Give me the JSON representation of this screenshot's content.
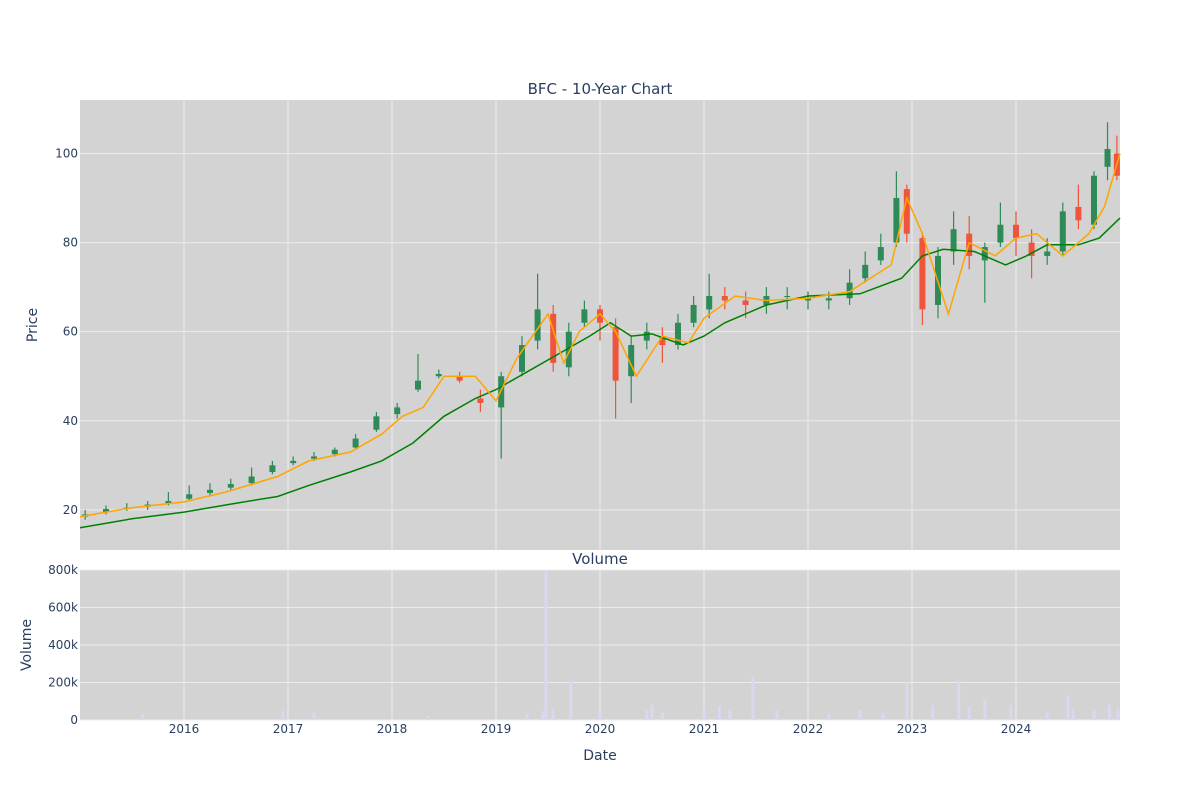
{
  "chart_data": [
    {
      "type": "candlestick",
      "title": "BFC - 10-Year Chart",
      "ylabel": "Price",
      "xlabel": "",
      "ylim": [
        11,
        112
      ],
      "yticks": [
        20,
        40,
        60,
        80,
        100
      ],
      "xrange": [
        2015.0,
        2025.0
      ],
      "grid": true,
      "legend": "none",
      "colors": {
        "background": "#d3d3d3",
        "grid": "#ececec",
        "up": "#2e8b57",
        "down": "#ef553b",
        "ma_short": "#ffa500",
        "ma_long": "#008000"
      },
      "series": [
        {
          "name": "",
          "role": "ma_long",
          "x": [
            2015.0,
            2015.5,
            2016.0,
            2016.5,
            2016.9,
            2017.2,
            2017.6,
            2017.9,
            2018.2,
            2018.5,
            2018.8,
            2019.0,
            2019.3,
            2019.6,
            2019.9,
            2020.1,
            2020.3,
            2020.5,
            2020.8,
            2021.0,
            2021.2,
            2021.6,
            2022.0,
            2022.5,
            2022.9,
            2023.1,
            2023.3,
            2023.6,
            2023.9,
            2024.1,
            2024.3,
            2024.6,
            2024.8,
            2025.0
          ],
          "y": [
            16,
            18,
            19.5,
            21.5,
            23,
            25.5,
            28.5,
            31,
            35,
            41,
            45,
            47,
            51,
            55,
            59,
            62,
            59,
            59.5,
            57,
            59,
            62,
            66,
            68,
            68.5,
            72,
            77,
            78.5,
            78,
            75,
            77,
            79.5,
            79.5,
            81,
            85.5
          ]
        },
        {
          "name": "",
          "role": "ma_short",
          "x": [
            2015.0,
            2015.5,
            2016.0,
            2016.4,
            2016.9,
            2017.2,
            2017.6,
            2017.9,
            2018.1,
            2018.3,
            2018.5,
            2018.8,
            2019.0,
            2019.2,
            2019.5,
            2019.65,
            2019.8,
            2020.0,
            2020.15,
            2020.35,
            2020.6,
            2020.85,
            2021.0,
            2021.3,
            2021.6,
            2022.0,
            2022.4,
            2022.8,
            2022.95,
            2023.1,
            2023.35,
            2023.55,
            2023.8,
            2024.0,
            2024.2,
            2024.45,
            2024.7,
            2024.85,
            2025.0
          ],
          "y": [
            18.5,
            20.5,
            21.8,
            24,
            27.5,
            31,
            33,
            37,
            41,
            43,
            50,
            50,
            44.5,
            54,
            64,
            53,
            60,
            64,
            60,
            50,
            59,
            57.5,
            63,
            68,
            67,
            67.5,
            69,
            75,
            90,
            82,
            64,
            80,
            77,
            81,
            82,
            77,
            82,
            88,
            100
          ]
        }
      ],
      "candles": {
        "x": [
          2015.05,
          2015.25,
          2015.45,
          2015.65,
          2015.85,
          2016.05,
          2016.25,
          2016.45,
          2016.65,
          2016.85,
          2017.05,
          2017.25,
          2017.45,
          2017.65,
          2017.85,
          2018.05,
          2018.25,
          2018.45,
          2018.65,
          2018.85,
          2019.05,
          2019.25,
          2019.4,
          2019.55,
          2019.7,
          2019.85,
          2020.0,
          2020.15,
          2020.3,
          2020.45,
          2020.6,
          2020.75,
          2020.9,
          2021.05,
          2021.2,
          2021.4,
          2021.6,
          2021.8,
          2022.0,
          2022.2,
          2022.4,
          2022.55,
          2022.7,
          2022.85,
          2022.95,
          2023.1,
          2023.25,
          2023.4,
          2023.55,
          2023.7,
          2023.85,
          2024.0,
          2024.15,
          2024.3,
          2024.45,
          2024.6,
          2024.75,
          2024.88,
          2024.97
        ],
        "open": [
          18.5,
          19.5,
          20.3,
          20.7,
          21.5,
          22.5,
          23.8,
          25,
          26,
          28.5,
          30.5,
          31.5,
          32.5,
          34,
          38,
          41.5,
          47,
          50,
          50,
          45,
          43,
          51,
          58,
          64,
          52,
          62,
          65,
          61,
          50,
          58,
          59,
          57,
          62,
          65,
          68,
          67,
          66,
          68,
          67,
          67,
          67.5,
          72,
          76,
          80,
          92,
          81,
          66,
          78,
          82,
          76,
          80,
          84,
          80,
          77,
          78,
          88,
          84,
          97,
          100
        ],
        "close": [
          19,
          20.2,
          20.5,
          21.2,
          22,
          23.5,
          24.5,
          25.8,
          27.5,
          30,
          31,
          32,
          33.5,
          36,
          41,
          43,
          49,
          50.5,
          49,
          44,
          50,
          57,
          65,
          53,
          60,
          65,
          62,
          49,
          57,
          60,
          57,
          62,
          66,
          68,
          67,
          66,
          68,
          68,
          67.5,
          67.5,
          71,
          75,
          79,
          90,
          82,
          65,
          77,
          83,
          77,
          79,
          84,
          81,
          77,
          78,
          87,
          85,
          95,
          101,
          95
        ],
        "high": [
          20,
          21,
          21.5,
          22,
          24,
          25.5,
          26,
          27,
          29.5,
          31,
          32,
          33,
          34,
          37,
          42,
          44,
          55,
          51.5,
          51,
          47,
          51,
          59,
          73,
          66,
          62,
          67,
          66,
          63,
          59,
          62,
          61,
          64,
          68,
          73,
          70,
          69,
          70,
          70,
          69,
          69,
          74,
          78,
          82,
          96,
          93,
          82,
          79,
          87,
          86,
          80,
          89,
          87,
          83,
          81,
          89,
          93,
          96,
          107,
          104
        ],
        "low": [
          17.8,
          19,
          19.8,
          20,
          21,
          22,
          23,
          24.5,
          25.5,
          28,
          30,
          31,
          32,
          33.5,
          37.5,
          40.5,
          46.5,
          49.5,
          48.5,
          42,
          31.5,
          50,
          56,
          51,
          50,
          61,
          58,
          40.5,
          44,
          56,
          53,
          56,
          61,
          63,
          65,
          63,
          64,
          65,
          65,
          65,
          66,
          71,
          75,
          79,
          80,
          61.5,
          63,
          75,
          74,
          66.5,
          79,
          77,
          72,
          75,
          77,
          83,
          83,
          94,
          94
        ]
      }
    },
    {
      "type": "bar",
      "title": "Volume",
      "xlabel": "Date",
      "ylabel": "Volume",
      "ylim": [
        0,
        800000
      ],
      "yticks": [
        0,
        200000,
        400000,
        600000,
        800000
      ],
      "ytick_labels": [
        "0",
        "200k",
        "400k",
        "600k",
        "800k"
      ],
      "xticks": [
        2016,
        2017,
        2018,
        2019,
        2020,
        2021,
        2022,
        2023,
        2024
      ],
      "xtick_labels": [
        "2016",
        "2017",
        "2018",
        "2019",
        "2020",
        "2021",
        "2022",
        "2023",
        "2024"
      ],
      "grid": true,
      "colors": {
        "bar": "#d8d8f0"
      },
      "x": [
        2015.6,
        2016.95,
        2017.25,
        2018.35,
        2019.3,
        2019.45,
        2019.48,
        2019.55,
        2019.72,
        2020.0,
        2020.45,
        2020.5,
        2020.6,
        2021.0,
        2021.15,
        2021.25,
        2021.47,
        2021.7,
        2022.2,
        2022.5,
        2022.72,
        2022.95,
        2023.2,
        2023.45,
        2023.55,
        2023.7,
        2023.95,
        2024.3,
        2024.5,
        2024.55,
        2024.75,
        2024.9,
        2024.98
      ],
      "values": [
        30000,
        50000,
        40000,
        20000,
        30000,
        45000,
        790000,
        60000,
        210000,
        40000,
        50000,
        80000,
        40000,
        60000,
        75000,
        50000,
        230000,
        50000,
        30000,
        55000,
        40000,
        200000,
        80000,
        210000,
        70000,
        110000,
        80000,
        40000,
        130000,
        60000,
        50000,
        80000,
        60000
      ]
    }
  ]
}
